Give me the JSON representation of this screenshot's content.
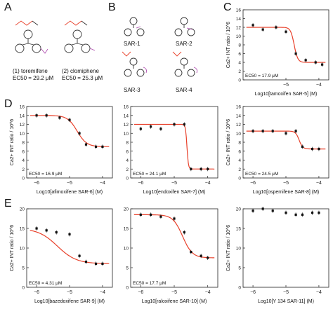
{
  "panels": {
    "A": {
      "letter": "A",
      "compounds": [
        {
          "label": "(1) toremifene",
          "ec50": "EC50 = 29.2 μM"
        },
        {
          "label": "(2) clomiphene",
          "ec50": "EC50 = 25.3 μM"
        }
      ]
    },
    "B": {
      "letter": "B",
      "compounds": [
        "SAR-1",
        "SAR-2",
        "SAR-3",
        "SAR-4"
      ]
    },
    "C": {
      "letter": "C"
    },
    "D": {
      "letter": "D"
    },
    "E": {
      "letter": "E"
    }
  },
  "ylabel_top": "Ca2+ INT ratio / 10^6",
  "chart_data": [
    {
      "id": "C",
      "type": "scatter",
      "xlabel": "Log10[tamoxifen SAR-5] (M)",
      "ylabel": "Ca2+ INT ratio / 10^6",
      "ec50": "EC50 = 17.9 μM",
      "xlim": [
        -6.3,
        -3.7
      ],
      "ylim": [
        0,
        16
      ],
      "xticks": [
        -5,
        -4
      ],
      "yticks": [
        0,
        2,
        4,
        6,
        8,
        10,
        12,
        14,
        16
      ],
      "x": [
        -6.0,
        -5.7,
        -5.3,
        -5.0,
        -4.7,
        -4.4,
        -4.1,
        -3.9
      ],
      "y": [
        12.5,
        11.5,
        12.0,
        11.0,
        6.0,
        4.5,
        4.0,
        3.5
      ],
      "fit": {
        "top": 12.0,
        "bottom": 4.0,
        "logec50": -4.75,
        "hill": 8,
        "color": "#e8402a"
      }
    },
    {
      "id": "D1",
      "type": "scatter",
      "xlabel": "Log10[afimoxifene SAR-6] (M)",
      "ylabel": "Ca2+ INT ratio / 10^6",
      "ec50": "EC50 = 16.9 μM",
      "xlim": [
        -6.3,
        -3.7
      ],
      "ylim": [
        0,
        16
      ],
      "xticks": [
        -6,
        -5,
        -4
      ],
      "yticks": [
        0,
        2,
        4,
        6,
        8,
        10,
        12,
        14,
        16
      ],
      "x": [
        -6.0,
        -5.7,
        -5.3,
        -5.0,
        -4.7,
        -4.5,
        -4.2,
        -4.0
      ],
      "y": [
        14.0,
        14.0,
        13.5,
        13.0,
        10.0,
        7.5,
        7.0,
        7.0
      ],
      "fit": {
        "top": 14.0,
        "bottom": 7.0,
        "logec50": -4.77,
        "hill": 3,
        "color": "#e8402a"
      }
    },
    {
      "id": "D2",
      "type": "scatter",
      "xlabel": "Log10[endoxifen SAR-7] (M)",
      "ec50": "EC50 = 24.1 μM",
      "xlim": [
        -6.3,
        -3.7
      ],
      "ylim": [
        0,
        16
      ],
      "xticks": [
        -6,
        -5,
        -4
      ],
      "yticks": [
        0,
        2,
        4,
        6,
        8,
        10,
        12,
        14,
        16
      ],
      "x": [
        -6.0,
        -5.7,
        -5.4,
        -5.0,
        -4.7,
        -4.5,
        -4.2,
        -4.0
      ],
      "y": [
        11.0,
        11.5,
        11.0,
        12.0,
        12.0,
        2.0,
        2.0,
        2.0
      ],
      "fit": {
        "top": 12.0,
        "bottom": 2.0,
        "logec50": -4.62,
        "hill": 20,
        "color": "#e8402a"
      }
    },
    {
      "id": "D3",
      "type": "scatter",
      "xlabel": "Log10[ospemifene SAR-8] (M)",
      "ylabel": "Ca2+ INT ratio / 10^6",
      "ec50": "EC50 = 24.5 μM",
      "xlim": [
        -6.3,
        -3.7
      ],
      "ylim": [
        0,
        16
      ],
      "xticks": [
        -6,
        -5,
        -4
      ],
      "yticks": [
        0,
        2,
        4,
        6,
        8,
        10,
        12,
        14,
        16
      ],
      "x": [
        -6.0,
        -5.7,
        -5.4,
        -5.0,
        -4.7,
        -4.5,
        -4.2,
        -4.0
      ],
      "y": [
        10.5,
        10.5,
        10.5,
        10.0,
        10.5,
        7.0,
        6.5,
        6.5
      ],
      "fit": {
        "top": 10.5,
        "bottom": 6.5,
        "logec50": -4.6,
        "hill": 8,
        "color": "#e8402a"
      }
    },
    {
      "id": "E1",
      "type": "scatter",
      "xlabel": "Log10[bazedoxifene SAR-9] (M)",
      "ylabel": "Ca2+ INT ratio / 10^6",
      "ec50": "EC50 = 4.31 μM",
      "xlim": [
        -6.3,
        -3.7
      ],
      "ylim": [
        0,
        20
      ],
      "xticks": [
        -6,
        -5,
        -4
      ],
      "yticks": [
        0,
        5,
        10,
        15,
        20
      ],
      "x": [
        -6.0,
        -5.7,
        -5.4,
        -5.0,
        -4.7,
        -4.5,
        -4.2,
        -4.0
      ],
      "y": [
        15.0,
        14.5,
        14.0,
        13.5,
        8.0,
        6.5,
        6.0,
        6.0
      ],
      "fit": {
        "top": 15.0,
        "bottom": 6.0,
        "logec50": -5.37,
        "hill": 1.5,
        "color": "#e8402a"
      }
    },
    {
      "id": "E2",
      "type": "scatter",
      "xlabel": "Log10[raloxifene SAR-10] (M)",
      "ec50": "EC50 = 17.7 μM",
      "xlim": [
        -6.3,
        -3.7
      ],
      "ylim": [
        0,
        20
      ],
      "xticks": [
        -6,
        -5,
        -4
      ],
      "yticks": [
        0,
        5,
        10,
        15,
        20
      ],
      "x": [
        -6.0,
        -5.7,
        -5.4,
        -5.0,
        -4.7,
        -4.5,
        -4.2,
        -4.0
      ],
      "y": [
        18.5,
        18.5,
        18.0,
        17.5,
        14.0,
        9.0,
        8.0,
        7.5
      ],
      "fit": {
        "top": 18.5,
        "bottom": 7.5,
        "logec50": -4.75,
        "hill": 3,
        "color": "#e8402a"
      }
    },
    {
      "id": "E3",
      "type": "scatter",
      "xlabel": "Log10[Y 134 SAR-11] (M)",
      "ylabel": "Ca2+ INT ratio / 10^6",
      "ec50": "",
      "xlim": [
        -6.3,
        -3.7
      ],
      "ylim": [
        0,
        20
      ],
      "xticks": [
        -6,
        -5,
        -4
      ],
      "yticks": [
        0,
        5,
        10,
        15,
        20
      ],
      "x": [
        -6.0,
        -5.7,
        -5.4,
        -5.0,
        -4.7,
        -4.5,
        -4.2,
        -4.0
      ],
      "y": [
        19.5,
        20.0,
        19.5,
        19.0,
        18.5,
        18.5,
        19.0,
        19.0
      ],
      "fit": null
    }
  ]
}
